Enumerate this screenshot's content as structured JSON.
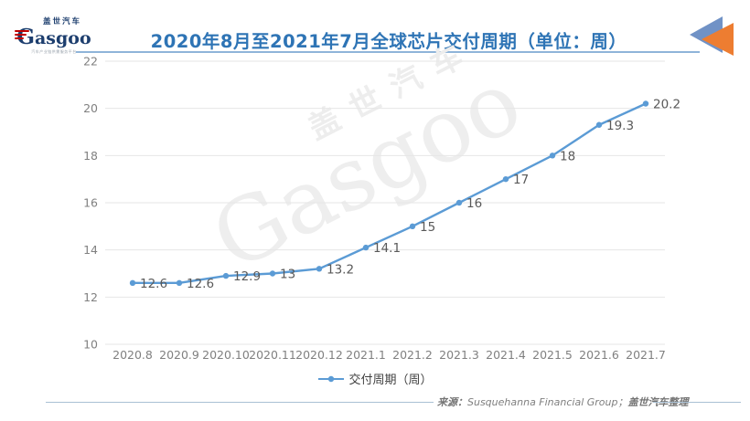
{
  "header": {
    "title": "2020年8月至2021年7月全球芯片交付周期（单位：周）",
    "title_color": "#2e74b5",
    "logo": {
      "cn": "盖世汽车",
      "en_initial": "G",
      "en_rest": "asgoo",
      "tagline": "汽车产业链供需服务平台"
    },
    "corner_mark_colors": {
      "blue": "#7092c6",
      "orange": "#ed7d31"
    }
  },
  "watermark": {
    "cn": "盖世汽车",
    "en": "Gasgoo"
  },
  "legend": {
    "label": "交付周期（周）"
  },
  "footer": {
    "source_label": "来源：",
    "source_en": "Susquehanna Financial Group；",
    "source_cn": "盖世汽车整理"
  },
  "chart_data": {
    "type": "line",
    "title": "2020年8月至2021年7月全球芯片交付周期（单位：周）",
    "categories": [
      "2020.8",
      "2020.9",
      "2020.10",
      "2020.11",
      "2020.12",
      "2021.1",
      "2021.2",
      "2021.3",
      "2021.4",
      "2021.5",
      "2021.6",
      "2021.7"
    ],
    "series": [
      {
        "name": "交付周期（周）",
        "values": [
          12.6,
          12.6,
          12.9,
          13,
          13.2,
          14.1,
          15,
          16,
          17,
          18,
          19.3,
          20.2
        ]
      }
    ],
    "xlabel": "",
    "ylabel": "",
    "ylim": [
      10,
      22
    ],
    "ytick_step": 2,
    "grid": "horizontal",
    "legend_position": "bottom",
    "data_labels": true,
    "line_color": "#5b9bd5",
    "label_color": "#595959",
    "axis_color": "#808080",
    "gridline_color": "#e6e6e6"
  }
}
